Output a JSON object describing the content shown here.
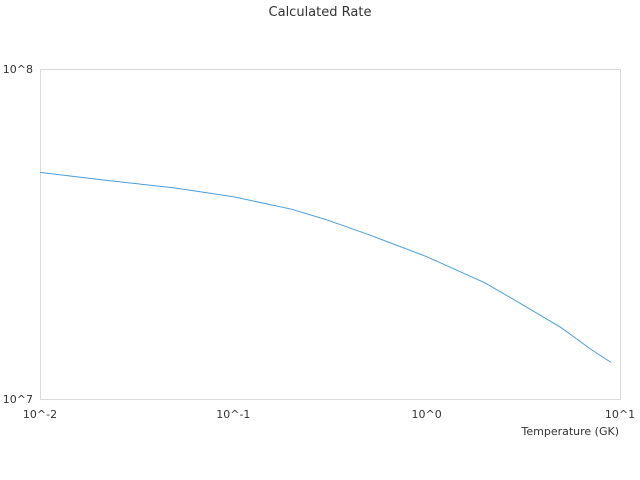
{
  "chart_data": {
    "type": "line",
    "title": "Calculated Rate",
    "xlabel": "Temperature (GK)",
    "ylabel": "",
    "x_scale": "log",
    "y_scale": "log",
    "xlim": [
      0.01,
      10
    ],
    "ylim": [
      10000000,
      100000000
    ],
    "x_ticks": [
      "10^-2",
      "10^-1",
      "10^0",
      "10^1"
    ],
    "y_ticks": [
      "10^7",
      "10^8"
    ],
    "grid": false,
    "legend": "none",
    "series": [
      {
        "color": "#4a9ee0",
        "x": [
          0.01,
          0.02,
          0.05,
          0.1,
          0.2,
          0.3,
          0.5,
          1.0,
          2.0,
          3.0,
          5.0,
          7.0,
          9.0
        ],
        "y": [
          48600000,
          46300000,
          43600000,
          41000000,
          37600000,
          35000000,
          31500000,
          27000000,
          22500000,
          19600000,
          16400000,
          14200000,
          12900000
        ]
      }
    ]
  }
}
